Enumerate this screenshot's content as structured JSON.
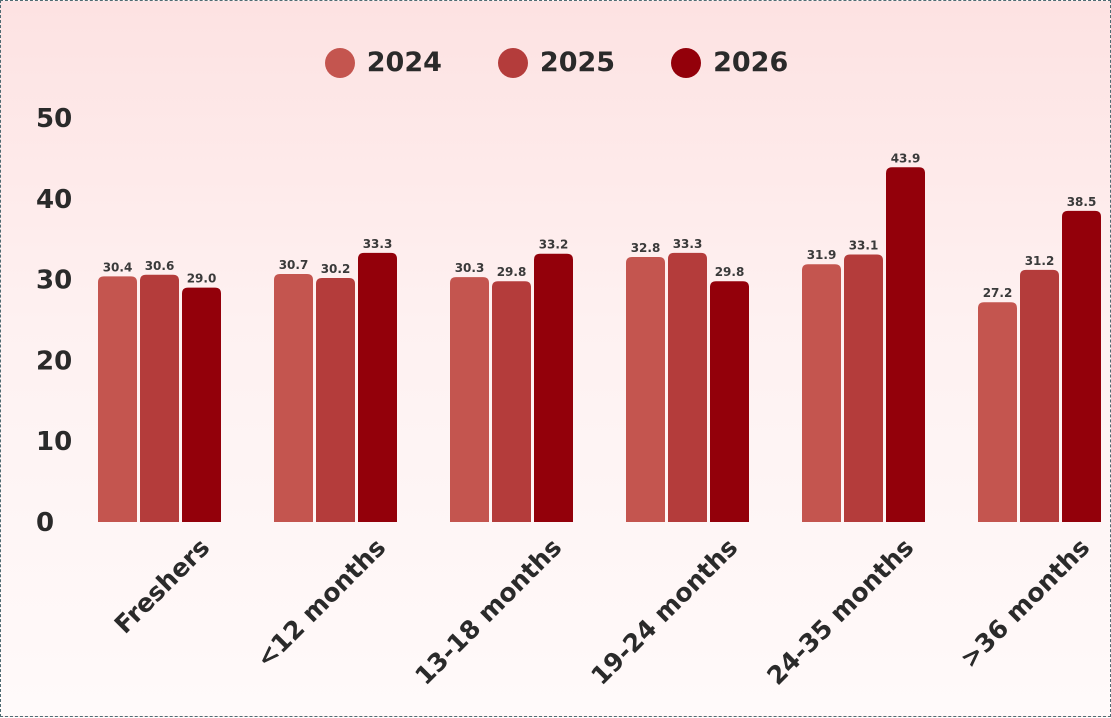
{
  "chart_data": {
    "type": "bar",
    "categories": [
      "Freshers",
      "<12 months",
      "13-18 months",
      "19-24 months",
      "24-35 months",
      ">36 months"
    ],
    "series": [
      {
        "name": "2024",
        "color": "#c4554f",
        "values": [
          30.4,
          30.7,
          30.3,
          32.8,
          31.9,
          27.2
        ]
      },
      {
        "name": "2025",
        "color": "#b43c3b",
        "values": [
          30.6,
          30.2,
          29.8,
          33.3,
          33.1,
          31.2
        ]
      },
      {
        "name": "2026",
        "color": "#93000a",
        "values": [
          29.0,
          33.3,
          33.2,
          29.8,
          43.9,
          38.5
        ]
      }
    ],
    "yticks": [
      0,
      10,
      20,
      30,
      40,
      50
    ],
    "ylim": [
      0,
      50
    ],
    "title": "",
    "xlabel": "",
    "ylabel": "",
    "legend_position": "top-center",
    "grid": false
  }
}
